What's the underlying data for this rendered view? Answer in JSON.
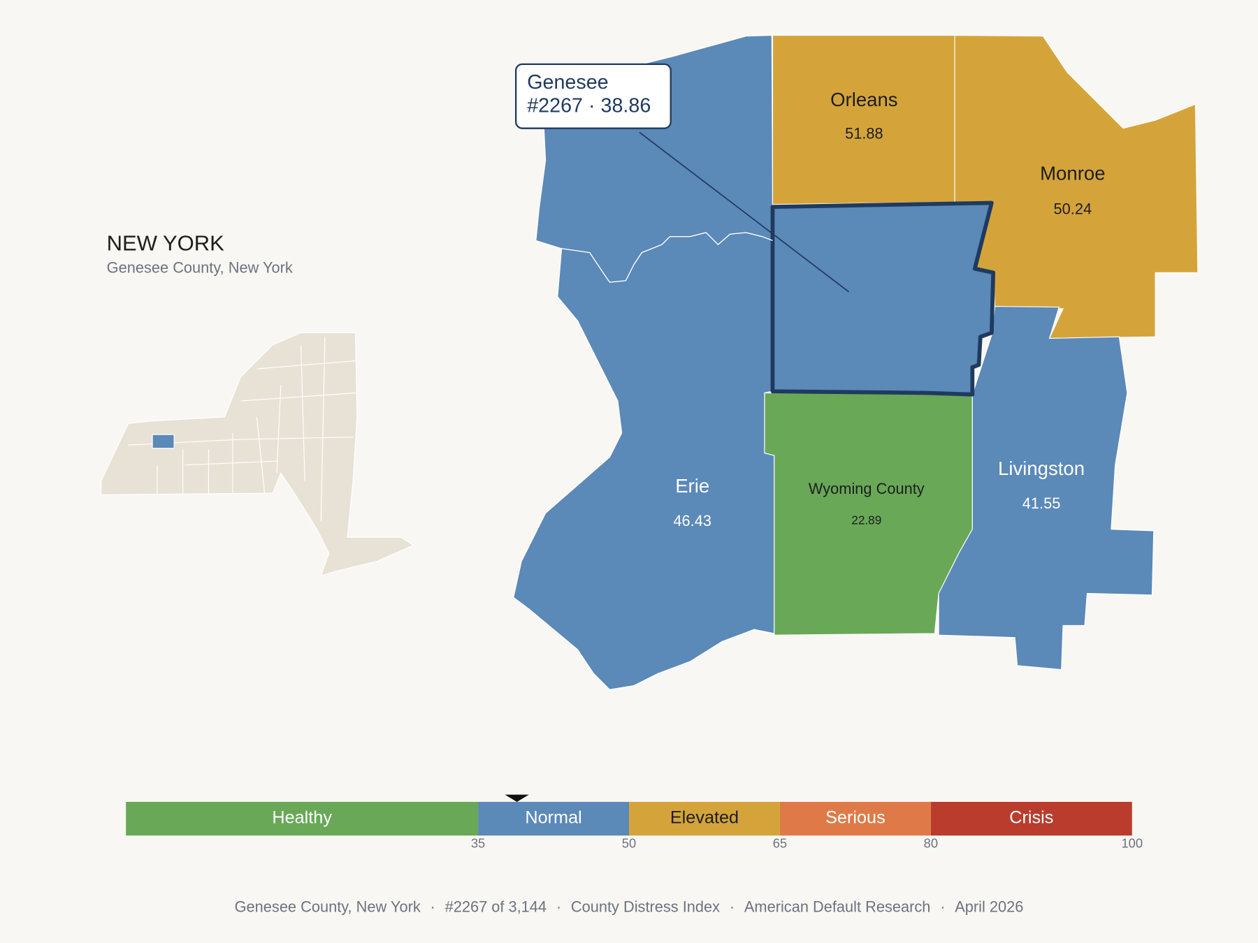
{
  "header": {
    "title": "NEW YORK",
    "subtitle": "Genesee County, New York"
  },
  "separator": "·",
  "counties": [
    {
      "name": "Genesee",
      "value": 38.86
    },
    {
      "name": "Orleans",
      "value": 51.88
    },
    {
      "name": "Monroe",
      "value": 50.24
    },
    {
      "name": "Erie",
      "value": 46.43
    },
    {
      "name": "Wyoming County",
      "value": 22.89
    },
    {
      "name": "Livingston",
      "value": 41.55
    }
  ],
  "callout": {
    "rank": "#2267"
  },
  "scale": {
    "lim": [
      0,
      100
    ],
    "ticks": [
      35,
      50,
      65,
      80,
      100
    ],
    "bands": [
      {
        "label": "Healthy",
        "color": "#68a857"
      },
      {
        "label": "Normal",
        "color": "#5b89b8"
      },
      {
        "label": "Elevated",
        "color": "#d4a43b"
      },
      {
        "label": "Serious",
        "color": "#df7a48"
      },
      {
        "label": "Crisis",
        "color": "#b93c2c"
      }
    ]
  },
  "footer": [
    "Genesee County, New York",
    "#2267 of 3,144",
    "County Distress Index",
    "American Default Research",
    "April 2026"
  ]
}
